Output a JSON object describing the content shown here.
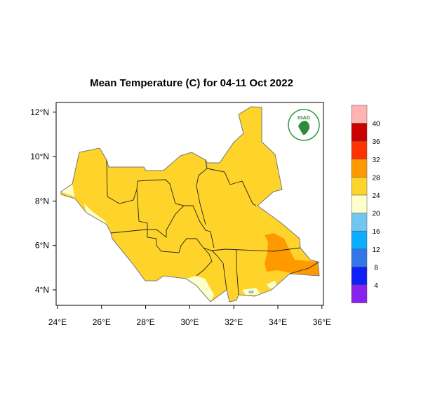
{
  "title": "Mean Temperature (C) for 04-11 Oct 2022",
  "logo_text": "IGAD",
  "x_ticks": [
    "24°E",
    "26°E",
    "28°E",
    "30°E",
    "32°E",
    "34°E",
    "36°E"
  ],
  "y_ticks": [
    "4°N",
    "6°N",
    "8°N",
    "10°N",
    "12°N"
  ],
  "colorbar": {
    "labels": [
      "40",
      "36",
      "32",
      "28",
      "24",
      "20",
      "16",
      "12",
      "8",
      "4"
    ],
    "colors": [
      "#ffb3b3",
      "#cc0000",
      "#ff3300",
      "#ff9900",
      "#ffd42a",
      "#ffffcc",
      "#73c6f0",
      "#0aaeff",
      "#3377e6",
      "#0f1ff5",
      "#8822ee"
    ]
  },
  "map_colors": {
    "base": "#ffd42a",
    "warm": "#ff9900",
    "cool": "#ffffcc",
    "cold": "#73c6f0",
    "border": "#222222",
    "outline": "#777777"
  }
}
